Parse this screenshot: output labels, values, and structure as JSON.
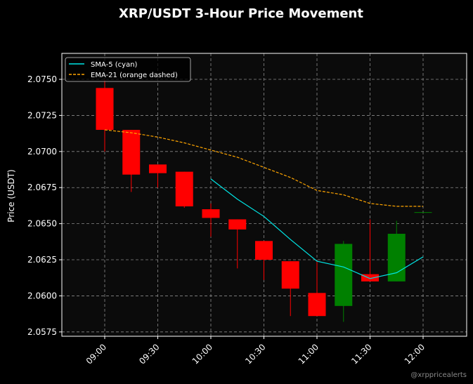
{
  "chart_data": {
    "type": "candlestick",
    "title": "XRP/USDT 3-Hour Price Movement",
    "ylabel": "Price (USDT)",
    "xlabel": "",
    "ylim": [
      2.0572,
      2.0768
    ],
    "yticks": [
      2.0575,
      2.06,
      2.0625,
      2.065,
      2.0675,
      2.07,
      2.0725,
      2.075
    ],
    "ytick_labels": [
      "2.0575",
      "2.0600",
      "2.0625",
      "2.0650",
      "2.0675",
      "2.0700",
      "2.0725",
      "2.0750"
    ],
    "xticks": [
      "09:00",
      "09:30",
      "10:00",
      "10:30",
      "11:00",
      "11:30",
      "12:00"
    ],
    "grid": true,
    "legend_position": "top-left",
    "candles": [
      {
        "time": "09:00",
        "open": 2.0744,
        "high": 2.075,
        "low": 2.07,
        "close": 2.0715
      },
      {
        "time": "09:15",
        "open": 2.0715,
        "high": 2.0715,
        "low": 2.0672,
        "close": 2.0684
      },
      {
        "time": "09:30",
        "open": 2.0691,
        "high": 2.0691,
        "low": 2.0675,
        "close": 2.0685
      },
      {
        "time": "09:45",
        "open": 2.0686,
        "high": 2.0686,
        "low": 2.0661,
        "close": 2.0662
      },
      {
        "time": "10:00",
        "open": 2.066,
        "high": 2.0664,
        "low": 2.0641,
        "close": 2.0654
      },
      {
        "time": "10:15",
        "open": 2.0653,
        "high": 2.0653,
        "low": 2.0619,
        "close": 2.0646
      },
      {
        "time": "10:30",
        "open": 2.0638,
        "high": 2.0638,
        "low": 2.0611,
        "close": 2.0625
      },
      {
        "time": "10:45",
        "open": 2.0624,
        "high": 2.0624,
        "low": 2.0586,
        "close": 2.0605
      },
      {
        "time": "11:00",
        "open": 2.0602,
        "high": 2.0624,
        "low": 2.0586,
        "close": 2.0586
      },
      {
        "time": "11:15",
        "open": 2.0593,
        "high": 2.0638,
        "low": 2.0582,
        "close": 2.0636
      },
      {
        "time": "11:30",
        "open": 2.0615,
        "high": 2.0653,
        "low": 2.061,
        "close": 2.061
      },
      {
        "time": "11:45",
        "open": 2.061,
        "high": 2.0652,
        "low": 2.061,
        "close": 2.0643
      },
      {
        "time": "12:00",
        "open": 2.0658,
        "high": 2.0658,
        "low": 2.0658,
        "close": 2.0658
      }
    ],
    "series": [
      {
        "name": "SMA-5 (cyan)",
        "style": "solid",
        "color": "#00e5e5",
        "x": [
          "10:00",
          "10:15",
          "10:30",
          "10:45",
          "11:00",
          "11:15",
          "11:30",
          "11:45",
          "12:00"
        ],
        "values": [
          2.0681,
          2.0667,
          2.0655,
          2.0639,
          2.0624,
          2.062,
          2.0612,
          2.0616,
          2.0627
        ]
      },
      {
        "name": "EMA-21 (orange dashed)",
        "style": "dashed",
        "color": "#ffa500",
        "x": [
          "09:00",
          "09:15",
          "09:30",
          "09:45",
          "10:00",
          "10:15",
          "10:30",
          "10:45",
          "11:00",
          "11:15",
          "11:30",
          "11:45",
          "12:00"
        ],
        "values": [
          2.0715,
          2.0713,
          2.071,
          2.0706,
          2.0701,
          2.0696,
          2.0689,
          2.0682,
          2.0673,
          2.067,
          2.0664,
          2.0662,
          2.0662
        ]
      }
    ],
    "colors": {
      "up": "#008000",
      "down": "#ff0000",
      "background": "#000000",
      "plot_background": "#0b0b0b",
      "grid": "#8a8a8a",
      "text": "#ffffff"
    }
  },
  "watermark": "@xrppricealerts"
}
